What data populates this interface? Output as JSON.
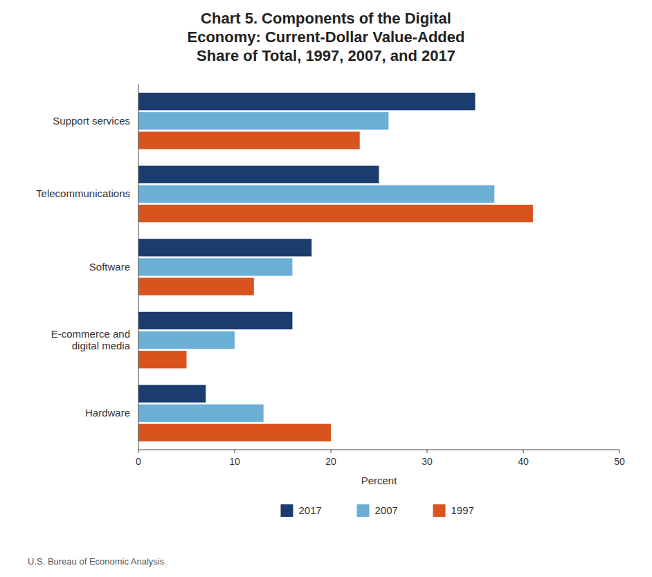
{
  "chart_data": {
    "type": "bar",
    "orientation": "horizontal",
    "title": "Chart 5. Components of the Digital\nEconomy: Current-Dollar Value-Added\nShare of Total, 1997, 2007, and 2017",
    "categories": [
      "Support services",
      "Telecommunications",
      "Software",
      "E-commerce and\ndigital media",
      "Hardware"
    ],
    "series": [
      {
        "name": "2017",
        "color": "#1a3c6e",
        "values": [
          35,
          25,
          18,
          16,
          7
        ]
      },
      {
        "name": "2007",
        "color": "#6baed6",
        "values": [
          26,
          37,
          16,
          10,
          13
        ]
      },
      {
        "name": "1997",
        "color": "#d9531e",
        "values": [
          23,
          41,
          12,
          5,
          20
        ]
      }
    ],
    "x_label": "Percent",
    "xlim": [
      0,
      50
    ],
    "xticks": [
      0,
      10,
      20,
      30,
      40,
      50
    ],
    "grid": false,
    "legend": "bottom",
    "annotations": [
      "U.S. Bureau of Economic Analysis"
    ]
  }
}
